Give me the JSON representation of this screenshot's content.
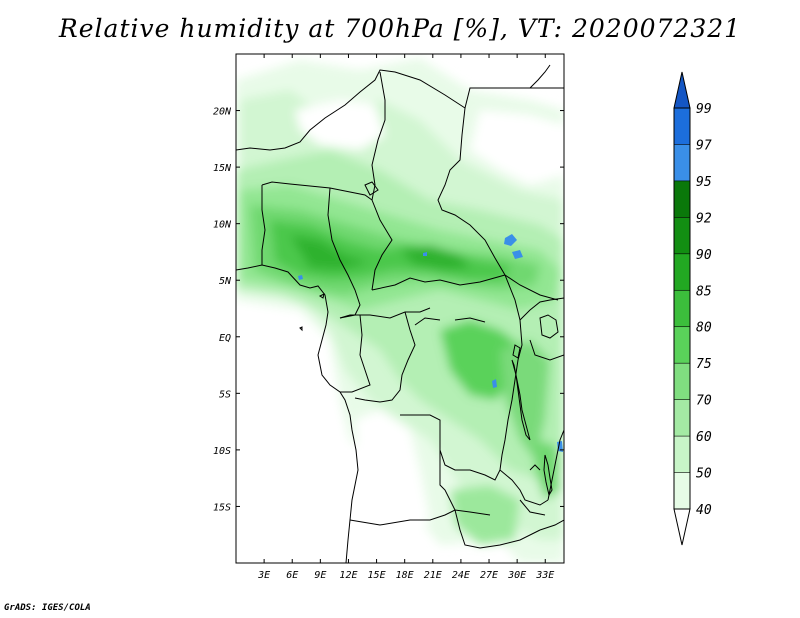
{
  "title": "Relative humidity at 700hPa [%], VT: 2020072321",
  "credit": "GrADS: IGES/COLA",
  "map": {
    "lon_range": [
      0,
      35
    ],
    "lat_range": [
      -20,
      25
    ],
    "x_ticks": [
      "3E",
      "6E",
      "9E",
      "12E",
      "15E",
      "18E",
      "21E",
      "24E",
      "27E",
      "30E",
      "33E"
    ],
    "y_ticks": [
      "20N",
      "15N",
      "10N",
      "5N",
      "EQ",
      "5S",
      "10S",
      "15S"
    ]
  },
  "colorbar": {
    "levels": [
      "40",
      "50",
      "60",
      "70",
      "75",
      "80",
      "85",
      "90",
      "92",
      "95",
      "97",
      "99"
    ],
    "colors": [
      "#ffffff",
      "#e6fce6",
      "#c8f5c8",
      "#a4eaa4",
      "#80de80",
      "#5ad25a",
      "#3cbe3c",
      "#22a822",
      "#128e12",
      "#0a780a",
      "#3a8fe8",
      "#1c6edc",
      "#1456c4"
    ]
  }
}
